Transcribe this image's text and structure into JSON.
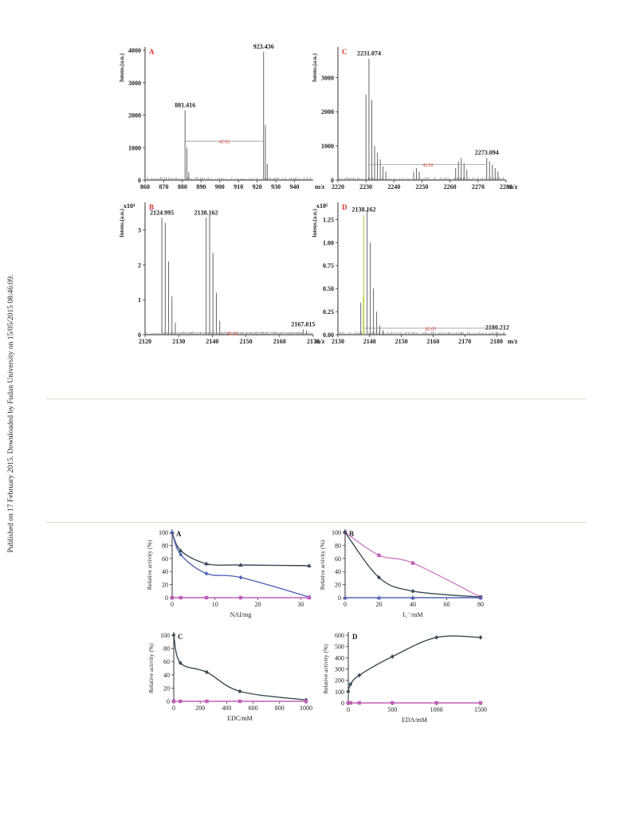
{
  "sidebar_note": "Published on 17 February 2015. Downloaded by Fudan University on 15/05/2015 08:46:09.",
  "chart_data": [
    {
      "type": "spectrum",
      "panel": "A",
      "ylabel": "Intens.(a.u.)",
      "xlabel": "m/z",
      "xlim": [
        860,
        950
      ],
      "ylim": [
        0,
        4000
      ],
      "xticks": [
        860,
        870,
        880,
        890,
        900,
        910,
        920,
        930,
        940
      ],
      "yticks": [
        0,
        1000,
        2000,
        3000,
        4000
      ],
      "peaks": [
        {
          "x": 881.416,
          "y": 2150,
          "label": "881.416"
        },
        {
          "x": 882.4,
          "y": 1000
        },
        {
          "x": 883.4,
          "y": 250
        },
        {
          "x": 923.436,
          "y": 3950,
          "label": "923.436"
        },
        {
          "x": 924.4,
          "y": 1700
        },
        {
          "x": 925.4,
          "y": 500
        }
      ],
      "mass_shift": {
        "from": 881.416,
        "to": 923.436,
        "label": "42.02",
        "y": 1200
      }
    },
    {
      "type": "spectrum",
      "panel": "C",
      "ylabel": "Intens.(a.u.)",
      "xlabel": "m/z",
      "xlim": [
        2220,
        2280
      ],
      "ylim": [
        0,
        3800
      ],
      "xticks": [
        2220,
        2230,
        2240,
        2250,
        2260,
        2270,
        2280
      ],
      "yticks": [
        0,
        1000,
        2000,
        3000
      ],
      "peaks": [
        {
          "x": 2231.074,
          "y": 3550,
          "label": "2231.074"
        },
        {
          "x": 2230.0,
          "y": 2500
        },
        {
          "x": 2232.1,
          "y": 2350
        },
        {
          "x": 2233.1,
          "y": 1000
        },
        {
          "x": 2234.1,
          "y": 800
        },
        {
          "x": 2235.1,
          "y": 600
        },
        {
          "x": 2236.1,
          "y": 400
        },
        {
          "x": 2237.1,
          "y": 250
        },
        {
          "x": 2247.0,
          "y": 250
        },
        {
          "x": 2248.0,
          "y": 350
        },
        {
          "x": 2249.0,
          "y": 250
        },
        {
          "x": 2262.0,
          "y": 350
        },
        {
          "x": 2263.0,
          "y": 550
        },
        {
          "x": 2264.0,
          "y": 650
        },
        {
          "x": 2265.0,
          "y": 500
        },
        {
          "x": 2266.0,
          "y": 300
        },
        {
          "x": 2273.094,
          "y": 650,
          "label": "2273.094"
        },
        {
          "x": 2274.1,
          "y": 550
        },
        {
          "x": 2275.1,
          "y": 450
        },
        {
          "x": 2276.1,
          "y": 350
        },
        {
          "x": 2277.1,
          "y": 250
        }
      ],
      "mass_shift": {
        "from": 2231.074,
        "to": 2273.094,
        "label": "42.02",
        "y": 450
      }
    },
    {
      "type": "spectrum",
      "panel": "B",
      "ylabel": "Intens.(a.u.)",
      "xlabel": "m/z",
      "axis_multiplier": "x10⁴",
      "xlim": [
        2120,
        2170
      ],
      "ylim": [
        0,
        3.7
      ],
      "xticks": [
        2120,
        2130,
        2140,
        2150,
        2160,
        2170
      ],
      "yticks": [
        0,
        1,
        2,
        3
      ],
      "peaks": [
        {
          "x": 2124.995,
          "y": 3.35,
          "label": "2124.995"
        },
        {
          "x": 2126.0,
          "y": 3.2
        },
        {
          "x": 2127.0,
          "y": 2.1
        },
        {
          "x": 2128.0,
          "y": 1.1
        },
        {
          "x": 2129.0,
          "y": 0.35
        },
        {
          "x": 2138.162,
          "y": 3.35,
          "label": "2138.162"
        },
        {
          "x": 2139.2,
          "y": 3.45
        },
        {
          "x": 2140.2,
          "y": 2.35
        },
        {
          "x": 2141.2,
          "y": 1.2
        },
        {
          "x": 2142.2,
          "y": 0.4
        },
        {
          "x": 2167.015,
          "y": 0.15,
          "label": "2167.015"
        },
        {
          "x": 2168.0,
          "y": 0.12
        }
      ],
      "mass_shift": {
        "from": 2124.995,
        "to": 2167.015,
        "label": "42.02",
        "y": 0.05
      }
    },
    {
      "type": "spectrum",
      "panel": "D",
      "ylabel": "Intens.(a.u.)",
      "xlabel": "m/z",
      "axis_multiplier": "x10⁵",
      "xlim": [
        2130,
        2183
      ],
      "ylim": [
        0,
        1.4
      ],
      "xticks": [
        2130,
        2140,
        2150,
        2160,
        2170,
        2180
      ],
      "yticks": [
        0.0,
        0.25,
        0.5,
        0.75,
        1.0,
        1.25
      ],
      "ytick_labels": [
        "0.00",
        "0.25",
        "0.50",
        "0.75",
        "1.00",
        "1.25"
      ],
      "peaks": [
        {
          "x": 2138.162,
          "y": 1.3,
          "label": "2138.162"
        },
        {
          "x": 2137.2,
          "y": 0.35
        },
        {
          "x": 2139.2,
          "y": 1.35
        },
        {
          "x": 2140.2,
          "y": 1.0
        },
        {
          "x": 2141.2,
          "y": 0.5
        },
        {
          "x": 2142.2,
          "y": 0.25
        },
        {
          "x": 2143.2,
          "y": 0.1
        },
        {
          "x": 2144.2,
          "y": 0.05
        },
        {
          "x": 2160.0,
          "y": 0.03
        },
        {
          "x": 2169.0,
          "y": 0.03
        },
        {
          "x": 2180.212,
          "y": 0.02,
          "label": "2180.212"
        }
      ],
      "highlight_peak_x": 2138.0,
      "mass_shift": {
        "from": 2138.162,
        "to": 2180.212,
        "label": "42.05",
        "y": 0.07
      }
    },
    {
      "type": "line",
      "panel": "A",
      "xlabel": "NAI/mg",
      "ylabel": "Relative activity (%)",
      "xlim": [
        0,
        32
      ],
      "ylim": [
        0,
        100
      ],
      "xticks": [
        0,
        10,
        20,
        30
      ],
      "yticks": [
        0,
        20,
        40,
        60,
        80,
        100
      ],
      "series": [
        {
          "color": "#3b4a55",
          "marker": "triangle",
          "x": [
            0,
            2,
            8,
            16,
            32
          ],
          "y": [
            100,
            72,
            52,
            50,
            49
          ]
        },
        {
          "color": "#5464b8",
          "marker": "diamond",
          "x": [
            0,
            2,
            8,
            16,
            32
          ],
          "y": [
            100,
            66,
            37,
            31,
            1
          ]
        },
        {
          "color": "#c060b8",
          "marker": "square",
          "x": [
            0,
            2,
            8,
            16,
            32
          ],
          "y": [
            0,
            0,
            0,
            0,
            0
          ]
        }
      ]
    },
    {
      "type": "line",
      "panel": "B",
      "xlabel": "I₃⁻/mM",
      "ylabel": "Relative activity (%)",
      "xlim": [
        0,
        80
      ],
      "ylim": [
        0,
        100
      ],
      "xticks": [
        0,
        20,
        40,
        60,
        80
      ],
      "yticks": [
        0,
        20,
        40,
        60,
        80,
        100
      ],
      "series": [
        {
          "color": "#d080c8",
          "marker": "square",
          "x": [
            0,
            20,
            40,
            80
          ],
          "y": [
            100,
            65,
            53,
            1
          ]
        },
        {
          "color": "#3b4a55",
          "marker": "diamond",
          "x": [
            0,
            20,
            40,
            80
          ],
          "y": [
            100,
            31,
            10,
            1
          ]
        },
        {
          "color": "#5464b8",
          "marker": "triangle",
          "x": [
            0,
            20,
            40,
            80
          ],
          "y": [
            0,
            0,
            0,
            0
          ]
        }
      ]
    },
    {
      "type": "line",
      "panel": "C",
      "xlabel": "EDC/mM",
      "ylabel": "Relative activity (%)",
      "xlim": [
        0,
        1000
      ],
      "ylim": [
        0,
        100
      ],
      "xticks": [
        0,
        200,
        400,
        600,
        800,
        1000
      ],
      "yticks": [
        0,
        20,
        40,
        60,
        80,
        100
      ],
      "series": [
        {
          "color": "#3b4a55",
          "marker": "diamond",
          "x": [
            0,
            50,
            250,
            500,
            1000
          ],
          "y": [
            100,
            58,
            44,
            15,
            2
          ]
        },
        {
          "color": "#c060b8",
          "marker": "square",
          "x": [
            0,
            50,
            250,
            500,
            1000
          ],
          "y": [
            0,
            0,
            0,
            0,
            0
          ]
        }
      ]
    },
    {
      "type": "line",
      "panel": "D",
      "xlabel": "EDA/mM",
      "ylabel": "Relative activity (%)",
      "xlim": [
        0,
        1500
      ],
      "ylim": [
        0,
        600
      ],
      "xticks": [
        0,
        500,
        1000,
        1500
      ],
      "yticks": [
        0,
        100,
        200,
        300,
        400,
        500,
        600
      ],
      "series": [
        {
          "color": "#3b4a55",
          "marker": "diamond",
          "x": [
            0,
            25,
            125,
            500,
            1000,
            1500
          ],
          "y": [
            100,
            165,
            245,
            410,
            580,
            580
          ]
        },
        {
          "color": "#c060b8",
          "marker": "square",
          "x": [
            0,
            25,
            125,
            500,
            1000,
            1500
          ],
          "y": [
            0,
            0,
            0,
            0,
            0,
            0
          ]
        }
      ]
    }
  ]
}
